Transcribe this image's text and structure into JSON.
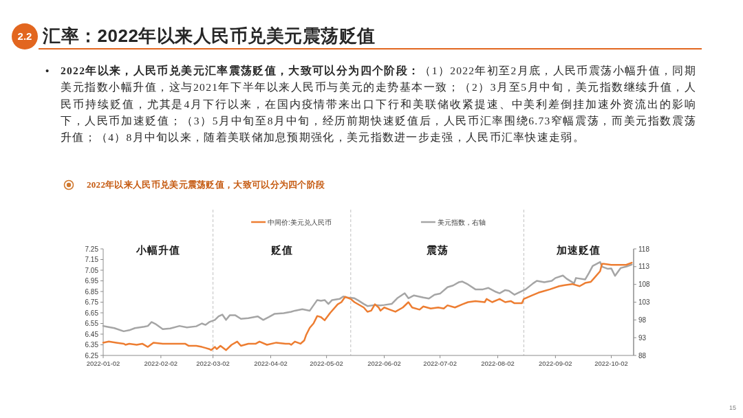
{
  "chart_data": {
    "type": "line",
    "title": "汇率：2022年以来人民币兑美元震荡贬值",
    "subtitle": "2022年以来人民币兑美元震荡贬值，大致可以分为四个阶段",
    "annotations": [
      "2.2",
      "•",
      "2022年以来，人民币兑美元汇率震荡贬值，大致可以分为四个阶段：",
      "（1）2022年初至2月底，人民币震荡小幅升值，同期美元指数小幅升值，这与2021年下半年以来人民币与美元的走势基本一致；（2）3月至5月中旬，美元指数继续升值，人民币持续贬值，尤其是4月下行以来，在国内疫情带来出口下行和美联储收紧提速、中美利差倒挂加速外资流出的影响下，人民币加速贬值；（3）5月中旬至8月中旬，经历前期快速贬值后，人民币汇率围绕6.73窄幅震荡，而美元指数震荡升值；（4）8月中旬以来，随着美联储加息预期强化，美元指数进一步走强，人民币汇率快速走弱。",
      "15",
      "小幅升值",
      "贬值",
      "震荡",
      "加速贬值"
    ],
    "series": [
      {
        "name": "中间价:美元兑人民币",
        "color": "#ed7d31",
        "x": [
          "2022-01-02",
          "2022-01-05",
          "2022-01-09",
          "2022-01-13",
          "2022-01-14",
          "2022-01-16",
          "2022-01-20",
          "2022-01-23",
          "2022-01-25",
          "2022-01-26",
          "2022-01-29",
          "2022-02-03",
          "2022-02-08",
          "2022-02-11",
          "2022-02-15",
          "2022-02-17",
          "2022-02-21",
          "2022-02-24",
          "2022-02-26",
          "2022-02-28",
          "2022-03-01",
          "2022-03-03",
          "2022-03-04",
          "2022-03-06",
          "2022-03-09",
          "2022-03-12",
          "2022-03-15",
          "2022-03-17",
          "2022-03-21",
          "2022-03-25",
          "2022-03-27",
          "2022-03-31",
          "2022-04-05",
          "2022-04-10",
          "2022-04-12",
          "2022-04-13",
          "2022-04-15",
          "2022-04-18",
          "2022-04-20",
          "2022-04-21",
          "2022-04-23",
          "2022-04-25",
          "2022-04-27",
          "2022-04-29",
          "2022-05-01",
          "2022-05-04",
          "2022-05-08",
          "2022-05-10",
          "2022-05-12",
          "2022-05-15",
          "2022-05-17",
          "2022-05-22",
          "2022-05-24",
          "2022-05-26",
          "2022-05-28",
          "2022-05-30",
          "2022-05-31",
          "2022-06-02",
          "2022-06-05",
          "2022-06-08",
          "2022-06-12",
          "2022-06-15",
          "2022-06-17",
          "2022-06-21",
          "2022-06-23",
          "2022-06-27",
          "2022-07-01",
          "2022-07-04",
          "2022-07-06",
          "2022-07-10",
          "2022-07-14",
          "2022-07-17",
          "2022-07-21",
          "2022-07-26",
          "2022-07-27",
          "2022-07-30",
          "2022-08-03",
          "2022-08-06",
          "2022-08-09",
          "2022-08-11",
          "2022-08-15",
          "2022-08-16",
          "2022-08-20",
          "2022-08-24",
          "2022-08-26",
          "2022-08-30",
          "2022-09-04",
          "2022-09-07",
          "2022-09-11",
          "2022-09-15",
          "2022-09-18",
          "2022-09-21",
          "2022-09-23",
          "2022-09-26",
          "2022-09-27",
          "2022-09-28",
          "2022-10-02",
          "2022-10-06",
          "2022-10-10",
          "2022-10-13"
        ],
        "values": [
          6.37,
          6.38,
          6.37,
          6.36,
          6.35,
          6.36,
          6.35,
          6.36,
          6.34,
          6.33,
          6.37,
          6.36,
          6.36,
          6.36,
          6.36,
          6.34,
          6.34,
          6.33,
          6.32,
          6.31,
          6.3,
          6.33,
          6.31,
          6.34,
          6.3,
          6.35,
          6.38,
          6.34,
          6.36,
          6.36,
          6.38,
          6.35,
          6.37,
          6.36,
          6.36,
          6.35,
          6.38,
          6.36,
          6.39,
          6.44,
          6.51,
          6.55,
          6.62,
          6.61,
          6.58,
          6.65,
          6.73,
          6.75,
          6.8,
          6.78,
          6.75,
          6.7,
          6.66,
          6.67,
          6.73,
          6.7,
          6.67,
          6.7,
          6.68,
          6.66,
          6.7,
          6.75,
          6.7,
          6.68,
          6.71,
          6.69,
          6.7,
          6.69,
          6.72,
          6.7,
          6.73,
          6.75,
          6.76,
          6.75,
          6.78,
          6.75,
          6.78,
          6.75,
          6.76,
          6.74,
          6.74,
          6.78,
          6.81,
          6.84,
          6.85,
          6.87,
          6.9,
          6.91,
          6.92,
          6.9,
          6.93,
          6.94,
          6.98,
          7.04,
          7.11,
          7.11,
          7.1,
          7.1,
          7.1,
          7.12
        ]
      },
      {
        "name": "美元指数，右轴",
        "color": "#a5a5a5",
        "axis": "y2",
        "x": [
          "2022-01-02",
          "2022-01-04",
          "2022-01-08",
          "2022-01-13",
          "2022-01-16",
          "2022-01-19",
          "2022-01-24",
          "2022-01-26",
          "2022-01-28",
          "2022-01-30",
          "2022-02-03",
          "2022-02-07",
          "2022-02-12",
          "2022-02-16",
          "2022-02-21",
          "2022-02-24",
          "2022-02-26",
          "2022-02-28",
          "2022-03-03",
          "2022-03-05",
          "2022-03-07",
          "2022-03-09",
          "2022-03-11",
          "2022-03-14",
          "2022-03-17",
          "2022-03-21",
          "2022-03-26",
          "2022-03-29",
          "2022-04-01",
          "2022-04-04",
          "2022-04-09",
          "2022-04-13",
          "2022-04-15",
          "2022-04-19",
          "2022-04-23",
          "2022-04-27",
          "2022-04-29",
          "2022-05-01",
          "2022-05-03",
          "2022-05-05",
          "2022-05-09",
          "2022-05-11",
          "2022-05-13",
          "2022-05-17",
          "2022-05-19",
          "2022-05-22",
          "2022-05-24",
          "2022-05-28",
          "2022-05-31",
          "2022-06-02",
          "2022-06-06",
          "2022-06-09",
          "2022-06-13",
          "2022-06-15",
          "2022-06-18",
          "2022-06-23",
          "2022-06-26",
          "2022-06-29",
          "2022-07-02",
          "2022-07-06",
          "2022-07-09",
          "2022-07-12",
          "2022-07-14",
          "2022-07-17",
          "2022-07-21",
          "2022-07-25",
          "2022-07-28",
          "2022-08-01",
          "2022-08-03",
          "2022-08-06",
          "2022-08-08",
          "2022-08-11",
          "2022-08-14",
          "2022-08-17",
          "2022-08-21",
          "2022-08-23",
          "2022-08-27",
          "2022-08-31",
          "2022-09-02",
          "2022-09-06",
          "2022-09-08",
          "2022-09-12",
          "2022-09-13",
          "2022-09-18",
          "2022-09-20",
          "2022-09-22",
          "2022-09-26",
          "2022-09-27",
          "2022-09-30",
          "2022-10-02",
          "2022-10-04",
          "2022-10-07",
          "2022-10-10",
          "2022-10-13"
        ],
        "values": [
          96.3,
          96.1,
          95.7,
          94.8,
          95.1,
          95.7,
          96.1,
          96.3,
          97.4,
          96.9,
          95.4,
          95.6,
          96.3,
          95.9,
          96.2,
          97.0,
          96.6,
          97.4,
          98.0,
          99.0,
          99.5,
          98.0,
          99.3,
          99.3,
          98.3,
          98.5,
          99.0,
          98.0,
          98.8,
          99.7,
          99.9,
          100.3,
          100.6,
          101.0,
          100.6,
          103.6,
          103.4,
          103.6,
          102.5,
          103.6,
          103.9,
          104.6,
          104.3,
          104.1,
          103.5,
          102.5,
          101.9,
          102.2,
          102.1,
          102.2,
          102.5,
          104.1,
          105.5,
          104.1,
          104.9,
          104.3,
          104.0,
          105.1,
          105.4,
          107.2,
          107.7,
          108.6,
          108.8,
          108.0,
          106.6,
          106.6,
          107.0,
          105.9,
          105.5,
          106.4,
          106.2,
          105.1,
          105.9,
          106.6,
          108.3,
          109.0,
          108.6,
          109.0,
          109.8,
          110.5,
          109.6,
          108.3,
          109.8,
          109.4,
          111.2,
          113.2,
          114.3,
          113.0,
          112.4,
          112.5,
          110.4,
          112.6,
          113.0,
          113.6
        ]
      }
    ],
    "xlim": [
      "2022-01-02",
      "2022-10-14"
    ],
    "xticks": [
      "2022-01-02",
      "2022-02-02",
      "2022-03-02",
      "2022-04-02",
      "2022-05-02",
      "2022-06-02",
      "2022-07-02",
      "2022-08-02",
      "2022-09-02",
      "2022-10-02"
    ],
    "ylim": [
      6.25,
      7.25
    ],
    "yticks": [
      6.25,
      6.35,
      6.45,
      6.55,
      6.65,
      6.75,
      6.85,
      6.95,
      7.05,
      7.15,
      7.25
    ],
    "y2lim": [
      88,
      118
    ],
    "y2ticks": [
      88,
      93,
      98,
      103,
      108,
      113,
      118
    ],
    "ref_lines": [
      {
        "axis": "x",
        "value": "2022-03-02",
        "color": "#bfbfbf",
        "line_style": "dashed"
      },
      {
        "axis": "x",
        "value": "2022-05-15",
        "color": "#bfbfbf",
        "line_style": "dashed"
      },
      {
        "axis": "x",
        "value": "2022-08-16",
        "color": "#bfbfbf",
        "line_style": "dashed"
      }
    ],
    "legend": "top",
    "grid": false,
    "marker": "none",
    "line_style": "solid"
  }
}
